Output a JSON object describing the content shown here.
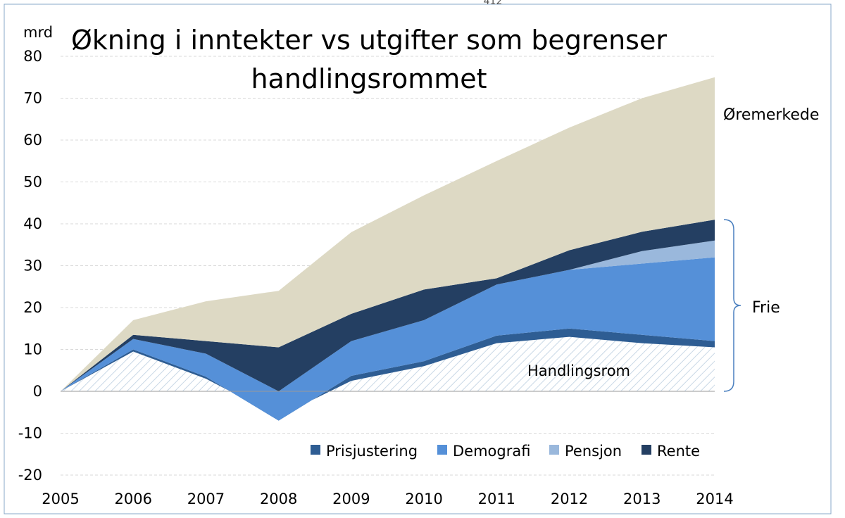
{
  "chart_data": {
    "type": "area",
    "title_line1": "Økning i inntekter vs utgifter som begrenser",
    "title_line2": "handlingsrommet",
    "header_mark": "412",
    "ylabel": "mrd",
    "xlabel": "",
    "x": [
      2005,
      2006,
      2007,
      2008,
      2009,
      2010,
      2011,
      2012,
      2013,
      2014
    ],
    "ylim": [
      -20,
      80
    ],
    "yticks": [
      80,
      70,
      60,
      50,
      40,
      30,
      20,
      10,
      0,
      -10,
      -20
    ],
    "grid": true,
    "legend_position": "bottom-right",
    "series": [
      {
        "name": "Handlingsrom",
        "color": "#c9d8e6",
        "pattern": "hatch",
        "values": [
          0,
          9.5,
          3,
          -6,
          2.5,
          6,
          11.5,
          13,
          11.5,
          10.5
        ]
      },
      {
        "name": "Prisjustering",
        "color": "#2e5d93",
        "values": [
          0,
          0.5,
          0.5,
          -1,
          1.2,
          1.2,
          1.8,
          2,
          2,
          1.5
        ]
      },
      {
        "name": "Demografi",
        "color": "#5590d8",
        "values": [
          0,
          2.5,
          5.5,
          7,
          8.3,
          9.8,
          12.2,
          14,
          17,
          20
        ]
      },
      {
        "name": "Pensjon",
        "color": "#9ab8dc",
        "values": [
          0,
          0,
          0,
          0,
          0,
          0,
          0,
          0,
          3,
          4
        ]
      },
      {
        "name": "Rente",
        "color": "#243f62",
        "values": [
          0,
          1,
          3,
          10.5,
          6.5,
          7.3,
          1.5,
          4.7,
          4.6,
          5
        ]
      },
      {
        "name": "Øremerkede",
        "color": "#ddd9c4",
        "values": [
          0,
          3.5,
          9.5,
          13.5,
          19.5,
          22.5,
          28,
          29.3,
          31.9,
          34
        ]
      }
    ],
    "legend": [
      "Prisjustering",
      "Demografi",
      "Pensjon",
      "Rente"
    ],
    "annotations": {
      "oremerkede": "Øremerkede",
      "frie": "Frie",
      "handlingsrom": "Handlingsrom"
    },
    "frie_bracket": [
      0,
      41
    ]
  }
}
